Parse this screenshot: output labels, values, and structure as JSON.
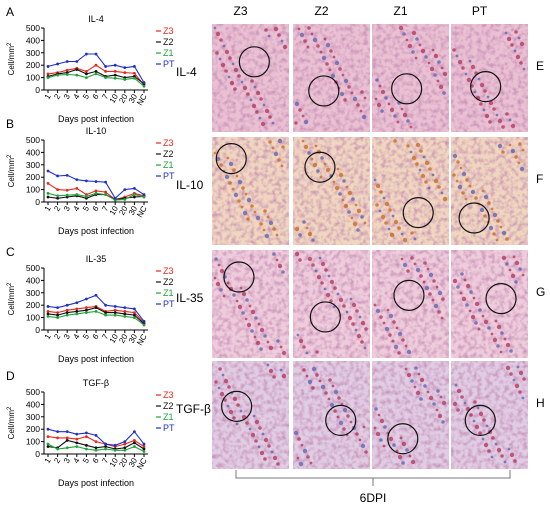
{
  "chart_data": [
    {
      "type": "line",
      "panel_letter": "A",
      "title": "IL-4",
      "xlabel": "Days post infection",
      "ylabel": "Cell/mm",
      "ylabel_sup": "2",
      "categories": [
        "1",
        "2",
        "3",
        "4",
        "5",
        "6",
        "7",
        "10",
        "20",
        "30",
        "NC"
      ],
      "yticks": [
        0,
        100,
        200,
        300,
        400,
        500
      ],
      "ylim": [
        0,
        500
      ],
      "grid": false,
      "legend_position": "right",
      "series": [
        {
          "name": "Z3",
          "color": "#e8271f",
          "values": [
            130,
            140,
            160,
            175,
            150,
            200,
            150,
            150,
            140,
            135,
            40
          ]
        },
        {
          "name": "Z2",
          "color": "#111111",
          "values": [
            110,
            130,
            140,
            165,
            130,
            150,
            110,
            120,
            100,
            110,
            50
          ]
        },
        {
          "name": "Z1",
          "color": "#20a33a",
          "values": [
            100,
            120,
            125,
            120,
            100,
            130,
            100,
            95,
            85,
            95,
            30
          ]
        },
        {
          "name": "PT",
          "color": "#1f2fc8",
          "values": [
            190,
            210,
            230,
            230,
            290,
            290,
            190,
            200,
            180,
            190,
            60
          ]
        }
      ]
    },
    {
      "type": "line",
      "panel_letter": "B",
      "title": "IL-10",
      "xlabel": "Days post infection",
      "ylabel": "Cell/mm",
      "ylabel_sup": "2",
      "categories": [
        "1",
        "2",
        "3",
        "4",
        "5",
        "6",
        "7",
        "10",
        "20",
        "30",
        "NC"
      ],
      "yticks": [
        0,
        100,
        200,
        300,
        400,
        500
      ],
      "ylim": [
        0,
        500
      ],
      "grid": false,
      "legend_position": "right",
      "series": [
        {
          "name": "Z3",
          "color": "#e8271f",
          "values": [
            150,
            100,
            95,
            110,
            60,
            90,
            80,
            20,
            40,
            70,
            50
          ]
        },
        {
          "name": "Z2",
          "color": "#111111",
          "values": [
            40,
            30,
            40,
            50,
            30,
            60,
            60,
            20,
            30,
            40,
            45
          ]
        },
        {
          "name": "Z1",
          "color": "#20a33a",
          "values": [
            70,
            50,
            55,
            60,
            45,
            70,
            60,
            15,
            20,
            60,
            40
          ]
        },
        {
          "name": "PT",
          "color": "#1f2fc8",
          "values": [
            250,
            210,
            215,
            180,
            170,
            165,
            160,
            30,
            100,
            110,
            60
          ]
        }
      ]
    },
    {
      "type": "line",
      "panel_letter": "C",
      "title": "IL-35",
      "xlabel": "Days post infection",
      "ylabel": "Cell/mm",
      "ylabel_sup": "2",
      "categories": [
        "1",
        "2",
        "3",
        "4",
        "5",
        "6",
        "7",
        "10",
        "20",
        "30",
        "NC"
      ],
      "yticks": [
        0,
        100,
        200,
        300,
        400,
        500
      ],
      "ylim": [
        0,
        500
      ],
      "grid": false,
      "legend_position": "right",
      "series": [
        {
          "name": "Z3",
          "color": "#e8271f",
          "values": [
            150,
            140,
            160,
            170,
            180,
            190,
            150,
            160,
            150,
            140,
            60
          ]
        },
        {
          "name": "Z2",
          "color": "#111111",
          "values": [
            130,
            120,
            140,
            150,
            160,
            180,
            140,
            140,
            130,
            120,
            50
          ]
        },
        {
          "name": "Z1",
          "color": "#20a33a",
          "values": [
            110,
            100,
            120,
            130,
            140,
            150,
            120,
            120,
            110,
            100,
            40
          ]
        },
        {
          "name": "PT",
          "color": "#1f2fc8",
          "values": [
            190,
            180,
            200,
            220,
            250,
            280,
            200,
            190,
            180,
            170,
            70
          ]
        }
      ]
    },
    {
      "type": "line",
      "panel_letter": "D",
      "title": "TGF-β",
      "xlabel": "Days post infection",
      "ylabel": "Cell/mm",
      "ylabel_sup": "2",
      "categories": [
        "1",
        "2",
        "3",
        "4",
        "5",
        "6",
        "7",
        "10",
        "20",
        "30",
        "NC"
      ],
      "yticks": [
        0,
        100,
        200,
        300,
        400,
        500
      ],
      "ylim": [
        0,
        500
      ],
      "grid": false,
      "legend_position": "right",
      "series": [
        {
          "name": "Z3",
          "color": "#e8271f",
          "values": [
            140,
            130,
            130,
            120,
            140,
            100,
            80,
            60,
            80,
            110,
            60
          ]
        },
        {
          "name": "Z2",
          "color": "#111111",
          "values": [
            60,
            50,
            110,
            90,
            70,
            50,
            60,
            40,
            50,
            90,
            40
          ]
        },
        {
          "name": "Z1",
          "color": "#20a33a",
          "values": [
            80,
            40,
            50,
            60,
            40,
            30,
            40,
            30,
            30,
            60,
            20
          ]
        },
        {
          "name": "PT",
          "color": "#1f2fc8",
          "values": [
            200,
            180,
            180,
            160,
            170,
            150,
            80,
            70,
            100,
            180,
            80
          ]
        }
      ]
    }
  ],
  "micrographs": {
    "column_labels": [
      "Z3",
      "Z2",
      "Z1",
      "PT"
    ],
    "row_labels": [
      "IL-4",
      "IL-10",
      "IL-35",
      "TGF-β"
    ],
    "row_letters": [
      "E",
      "F",
      "G",
      "H"
    ],
    "bottom_label": "6DPI",
    "stain_colors": {
      "IL-4": "#d98fb0",
      "IL-10": "#e3b48a",
      "IL-35": "#e0a2bd",
      "TGF-β": "#c7a2cc"
    }
  }
}
